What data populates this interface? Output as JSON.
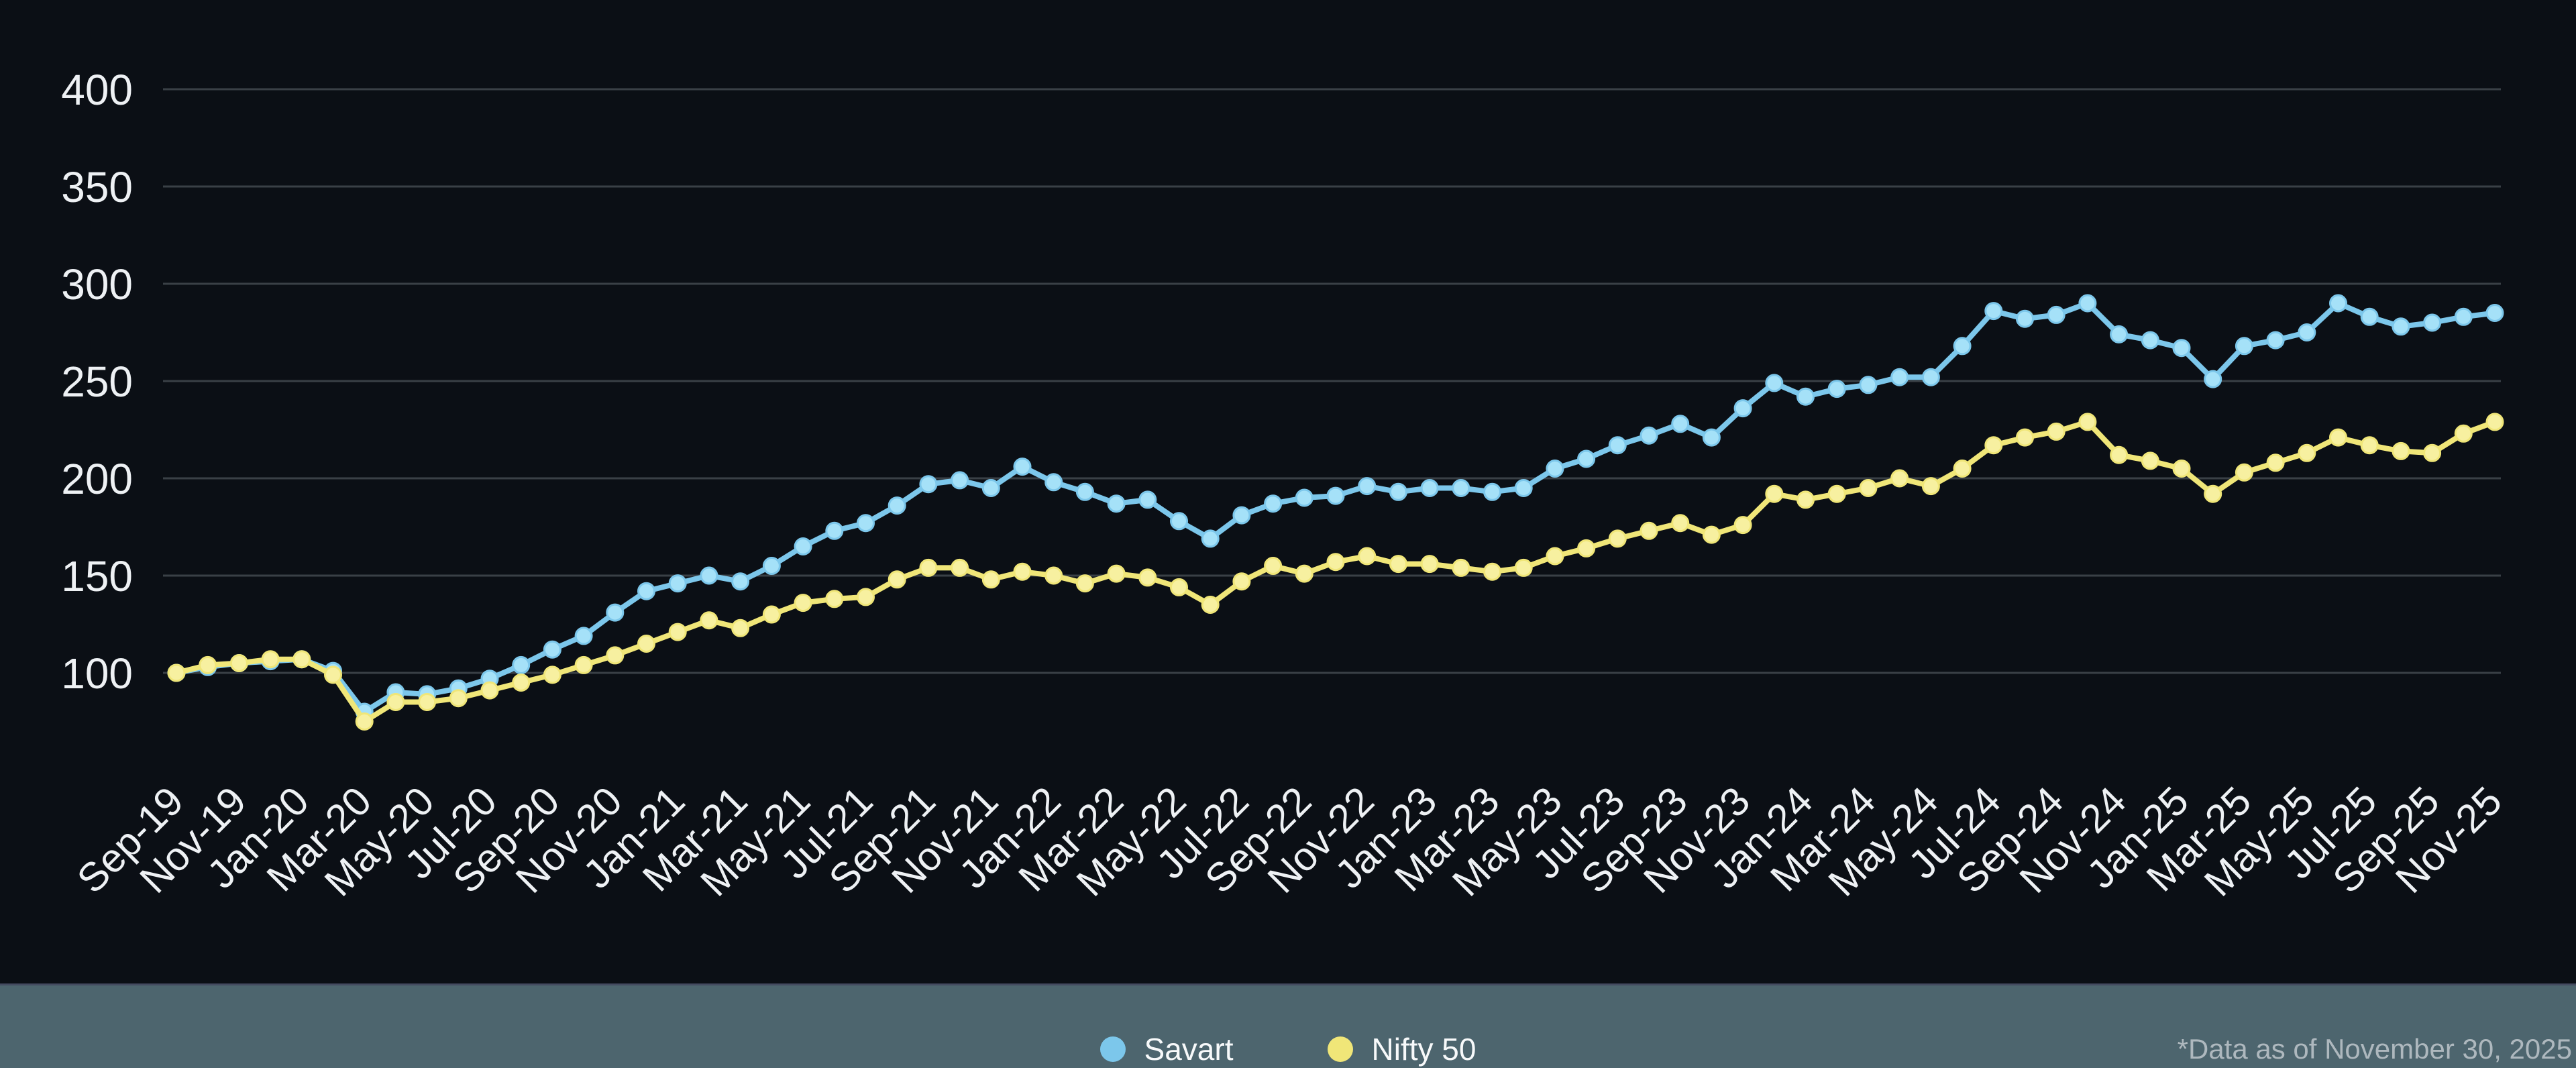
{
  "chart_data": {
    "type": "line",
    "title": "",
    "xlabel": "",
    "ylabel": "",
    "grid": true,
    "legend_position": "bottom-center",
    "y_ticks": [
      100,
      150,
      200,
      250,
      300,
      350,
      400
    ],
    "ylim": [
      70,
      415
    ],
    "x_tick_step": 2,
    "x": [
      "Sep-19",
      "Oct-19",
      "Nov-19",
      "Dec-19",
      "Jan-20",
      "Feb-20",
      "Mar-20",
      "Apr-20",
      "May-20",
      "Jun-20",
      "Jul-20",
      "Aug-20",
      "Sep-20",
      "Oct-20",
      "Nov-20",
      "Dec-20",
      "Jan-21",
      "Feb-21",
      "Mar-21",
      "Apr-21",
      "May-21",
      "Jun-21",
      "Jul-21",
      "Aug-21",
      "Sep-21",
      "Oct-21",
      "Nov-21",
      "Dec-21",
      "Jan-22",
      "Feb-22",
      "Mar-22",
      "Apr-22",
      "May-22",
      "Jun-22",
      "Jul-22",
      "Aug-22",
      "Sep-22",
      "Oct-22",
      "Nov-22",
      "Dec-22",
      "Jan-23",
      "Feb-23",
      "Mar-23",
      "Apr-23",
      "May-23",
      "Jun-23",
      "Jul-23",
      "Aug-23",
      "Sep-23",
      "Oct-23",
      "Nov-23",
      "Dec-23",
      "Jan-24",
      "Feb-24",
      "Mar-24",
      "Apr-24",
      "May-24",
      "Jun-24",
      "Jul-24",
      "Aug-24",
      "Sep-24",
      "Oct-24",
      "Nov-24",
      "Dec-24",
      "Jan-25",
      "Feb-25",
      "Mar-25",
      "Apr-25",
      "May-25",
      "Jun-25",
      "Jul-25",
      "Aug-25",
      "Sep-25",
      "Oct-25",
      "Nov-25"
    ],
    "series": [
      {
        "name": "Savart",
        "color": "#7cc7eb",
        "point_color": "#a5e1f8",
        "values": [
          100,
          103,
          105,
          106,
          107,
          101,
          80,
          90,
          89,
          92,
          97,
          104,
          112,
          119,
          131,
          142,
          146,
          150,
          147,
          155,
          165,
          173,
          177,
          186,
          197,
          199,
          195,
          206,
          198,
          193,
          187,
          189,
          178,
          169,
          181,
          187,
          190,
          191,
          196,
          193,
          195,
          195,
          193,
          195,
          205,
          210,
          217,
          222,
          228,
          221,
          236,
          249,
          242,
          246,
          248,
          252,
          252,
          268,
          286,
          282,
          284,
          290,
          274,
          271,
          267,
          251,
          268,
          271,
          275,
          290,
          283,
          278,
          280,
          283,
          285
        ]
      },
      {
        "name": "Nifty 50",
        "color": "#f0e678",
        "point_color": "#f7f0a0",
        "values": [
          100,
          104,
          105,
          107,
          107,
          99,
          75,
          85,
          85,
          87,
          91,
          95,
          99,
          104,
          109,
          115,
          121,
          127,
          123,
          130,
          136,
          138,
          139,
          148,
          154,
          154,
          148,
          152,
          150,
          146,
          151,
          149,
          144,
          135,
          147,
          155,
          151,
          157,
          160,
          156,
          156,
          154,
          152,
          154,
          160,
          164,
          169,
          173,
          177,
          171,
          176,
          192,
          189,
          192,
          195,
          200,
          196,
          205,
          217,
          221,
          224,
          229,
          212,
          209,
          205,
          192,
          203,
          208,
          213,
          221,
          217,
          214,
          213,
          223,
          229
        ]
      }
    ]
  },
  "footer": {
    "note": "*Data as of November 30, 2025"
  },
  "colors": {
    "background": "#0b0f15",
    "gridline": "#3a4046",
    "axis_text": "#eef1f4",
    "footer_bg": "#4d656e",
    "footer_border": "#444b60",
    "legend_text": "#f7f9fa",
    "note_text": "#aeb8be"
  }
}
